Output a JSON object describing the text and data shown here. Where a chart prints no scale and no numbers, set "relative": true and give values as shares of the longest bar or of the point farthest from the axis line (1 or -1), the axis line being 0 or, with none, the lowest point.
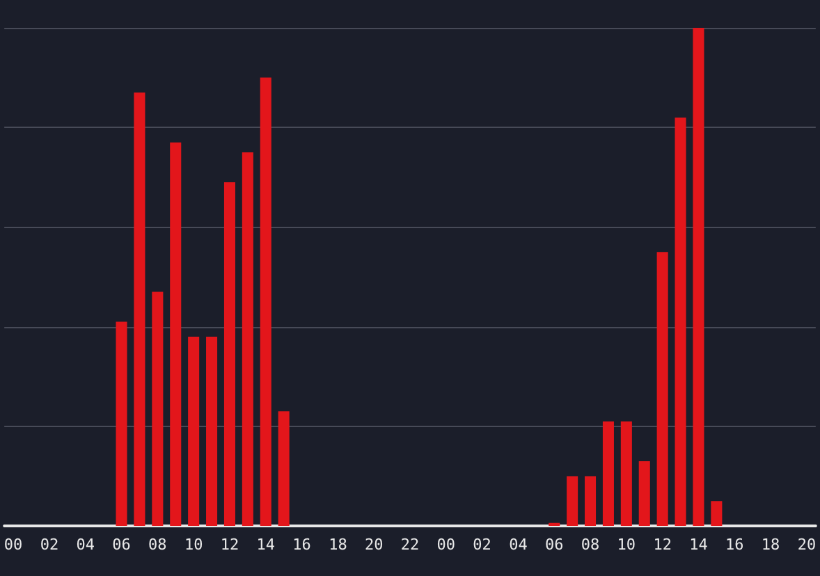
{
  "chart_data": {
    "type": "bar",
    "relative": true,
    "grid": "y",
    "color": "#e3161b",
    "categories": [
      "00",
      null,
      "02",
      null,
      "04",
      null,
      "06",
      null,
      "08",
      null,
      "10",
      null,
      "12",
      null,
      "14",
      null,
      "16",
      null,
      "18",
      null,
      "20",
      null,
      "22",
      null,
      "00",
      null,
      "02",
      null,
      "04",
      null,
      "06",
      null,
      "08",
      null,
      "10",
      null,
      "12",
      null,
      "14",
      null,
      "16",
      null,
      "18",
      null,
      "20"
    ],
    "values": [
      0,
      0,
      0,
      0,
      0,
      0,
      0.41,
      0.87,
      0.47,
      0.77,
      0.38,
      0.38,
      0.69,
      0.75,
      0.9,
      0.23,
      0,
      0,
      0,
      0,
      0,
      0,
      0,
      0,
      0,
      0,
      0,
      0,
      0,
      0,
      0.006,
      0.1,
      0.1,
      0.21,
      0.21,
      0.13,
      0.55,
      0.82,
      1,
      0.05,
      0,
      0,
      0,
      0,
      0
    ]
  }
}
